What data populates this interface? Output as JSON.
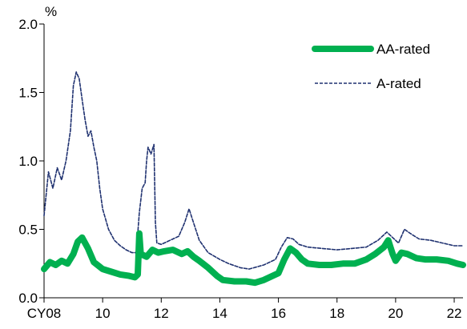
{
  "chart_data": {
    "type": "line",
    "title": "",
    "unit_label": "%",
    "xlabel": "",
    "ylabel": "",
    "x_range": [
      2008,
      2022.3
    ],
    "ylim": [
      0,
      2.0
    ],
    "y_ticks": [
      {
        "value": 0.0,
        "label": "0.0"
      },
      {
        "value": 0.5,
        "label": "0.5"
      },
      {
        "value": 1.0,
        "label": "1.0"
      },
      {
        "value": 1.5,
        "label": "1.5"
      },
      {
        "value": 2.0,
        "label": "2.0"
      }
    ],
    "x_ticks": [
      {
        "value": 2008,
        "label": "CY08"
      },
      {
        "value": 2010,
        "label": "10"
      },
      {
        "value": 2012,
        "label": "12"
      },
      {
        "value": 2014,
        "label": "14"
      },
      {
        "value": 2016,
        "label": "16"
      },
      {
        "value": 2018,
        "label": "18"
      },
      {
        "value": 2020,
        "label": "20"
      },
      {
        "value": 2022,
        "label": "22"
      }
    ],
    "grid": false,
    "legend_position": "top-right",
    "series": [
      {
        "name": "AA-rated",
        "color": "#00b050",
        "style": "solid-thick",
        "x": [
          2008.0,
          2008.2,
          2008.4,
          2008.6,
          2008.8,
          2009.0,
          2009.15,
          2009.3,
          2009.5,
          2009.7,
          2010.0,
          2010.3,
          2010.6,
          2010.9,
          2011.1,
          2011.2,
          2011.25,
          2011.3,
          2011.5,
          2011.7,
          2011.9,
          2012.1,
          2012.4,
          2012.7,
          2012.9,
          2013.1,
          2013.3,
          2013.6,
          2013.9,
          2014.1,
          2014.5,
          2014.9,
          2015.2,
          2015.5,
          2015.8,
          2016.0,
          2016.2,
          2016.4,
          2016.6,
          2016.8,
          2017.0,
          2017.4,
          2017.8,
          2018.2,
          2018.6,
          2019.0,
          2019.3,
          2019.6,
          2019.75,
          2019.9,
          2020.0,
          2020.2,
          2020.4,
          2020.7,
          2021.0,
          2021.4,
          2021.8,
          2022.1,
          2022.3
        ],
        "y": [
          0.21,
          0.26,
          0.24,
          0.27,
          0.25,
          0.32,
          0.41,
          0.44,
          0.36,
          0.26,
          0.21,
          0.19,
          0.17,
          0.16,
          0.15,
          0.17,
          0.47,
          0.32,
          0.3,
          0.35,
          0.33,
          0.34,
          0.35,
          0.32,
          0.34,
          0.3,
          0.27,
          0.22,
          0.16,
          0.13,
          0.12,
          0.12,
          0.11,
          0.13,
          0.16,
          0.18,
          0.28,
          0.36,
          0.33,
          0.28,
          0.25,
          0.24,
          0.24,
          0.25,
          0.25,
          0.28,
          0.32,
          0.37,
          0.42,
          0.32,
          0.27,
          0.33,
          0.32,
          0.29,
          0.28,
          0.28,
          0.27,
          0.25,
          0.24
        ]
      },
      {
        "name": "A-rated",
        "color": "#1f3170",
        "style": "dashed",
        "x": [
          2008.0,
          2008.15,
          2008.3,
          2008.45,
          2008.6,
          2008.75,
          2008.9,
          2009.0,
          2009.1,
          2009.2,
          2009.3,
          2009.4,
          2009.5,
          2009.6,
          2009.7,
          2009.8,
          2009.9,
          2010.0,
          2010.2,
          2010.4,
          2010.6,
          2010.8,
          2011.0,
          2011.15,
          2011.25,
          2011.35,
          2011.45,
          2011.5,
          2011.55,
          2011.65,
          2011.75,
          2011.8,
          2011.85,
          2012.0,
          2012.3,
          2012.6,
          2012.8,
          2012.95,
          2013.1,
          2013.3,
          2013.6,
          2014.0,
          2014.3,
          2014.7,
          2015.0,
          2015.5,
          2015.9,
          2016.1,
          2016.3,
          2016.5,
          2016.7,
          2017.0,
          2017.5,
          2018.0,
          2018.5,
          2019.0,
          2019.4,
          2019.7,
          2019.9,
          2020.1,
          2020.3,
          2020.5,
          2020.8,
          2021.2,
          2021.6,
          2022.0,
          2022.3
        ],
        "y": [
          0.6,
          0.92,
          0.8,
          0.95,
          0.86,
          1.0,
          1.22,
          1.55,
          1.65,
          1.6,
          1.45,
          1.3,
          1.18,
          1.22,
          1.1,
          1.0,
          0.8,
          0.65,
          0.5,
          0.42,
          0.38,
          0.35,
          0.33,
          0.33,
          0.62,
          0.8,
          0.84,
          1.0,
          1.1,
          1.05,
          1.12,
          0.55,
          0.4,
          0.39,
          0.42,
          0.45,
          0.55,
          0.65,
          0.55,
          0.42,
          0.33,
          0.28,
          0.25,
          0.22,
          0.21,
          0.24,
          0.28,
          0.37,
          0.44,
          0.43,
          0.39,
          0.37,
          0.36,
          0.35,
          0.36,
          0.37,
          0.42,
          0.48,
          0.44,
          0.4,
          0.5,
          0.47,
          0.43,
          0.42,
          0.4,
          0.38,
          0.38
        ]
      }
    ]
  }
}
